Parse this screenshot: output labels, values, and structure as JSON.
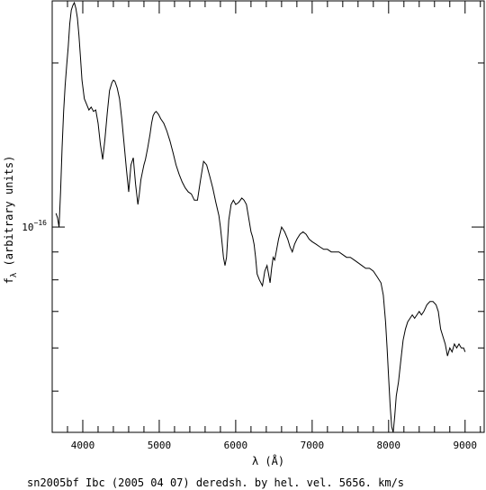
{
  "caption": "sn2005bf Ibc (2005 04 07) deredsh. by hel. vel.  5656. km/s",
  "chart_data": {
    "type": "line",
    "xlabel": "λ (Å)",
    "ylabel": "f_λ (arbitrary units)",
    "ylabel_main": "f",
    "ylabel_sub": "λ",
    "ylabel_rest": " (arbitrary units)",
    "xlim": [
      3600,
      9250
    ],
    "ylim": [
      4.2e-17,
      2.6e-16
    ],
    "yscale": "log",
    "x_ticks": [
      {
        "value": 4000,
        "label": "4000"
      },
      {
        "value": 5000,
        "label": "5000"
      },
      {
        "value": 6000,
        "label": "6000"
      },
      {
        "value": 7000,
        "label": "7000"
      },
      {
        "value": 8000,
        "label": "8000"
      },
      {
        "value": 9000,
        "label": "9000"
      }
    ],
    "y_major_tick": {
      "value": 1e-16,
      "mantissa": "10",
      "exponent": "−16"
    },
    "grid": false,
    "series": [
      {
        "x": [
          3650,
          3670,
          3690,
          3710,
          3730,
          3750,
          3770,
          3790,
          3810,
          3830,
          3850,
          3870,
          3890,
          3910,
          3930,
          3950,
          3970,
          3990,
          4020,
          4050,
          4080,
          4110,
          4140,
          4170,
          4200,
          4230,
          4260,
          4290,
          4320,
          4350,
          4380,
          4400,
          4420,
          4450,
          4480,
          4510,
          4540,
          4570,
          4600,
          4630,
          4660,
          4690,
          4720,
          4740,
          4760,
          4780,
          4800,
          4820,
          4850,
          4880,
          4900,
          4920,
          4940,
          4960,
          4990,
          5020,
          5060,
          5100,
          5140,
          5180,
          5220,
          5260,
          5300,
          5340,
          5380,
          5420,
          5460,
          5500,
          5540,
          5580,
          5620,
          5660,
          5700,
          5740,
          5780,
          5800,
          5820,
          5840,
          5860,
          5880,
          5910,
          5940,
          5970,
          6000,
          6040,
          6080,
          6110,
          6140,
          6170,
          6200,
          6220,
          6240,
          6260,
          6280,
          6310,
          6350,
          6380,
          6410,
          6430,
          6450,
          6470,
          6490,
          6510,
          6530,
          6560,
          6600,
          6640,
          6680,
          6710,
          6740,
          6770,
          6800,
          6840,
          6880,
          6920,
          6960,
          7000,
          7050,
          7100,
          7150,
          7200,
          7250,
          7300,
          7350,
          7400,
          7450,
          7500,
          7550,
          7600,
          7650,
          7700,
          7750,
          7800,
          7850,
          7900,
          7930,
          7960,
          7980,
          8000,
          8020,
          8040,
          8060,
          8080,
          8100,
          8130,
          8160,
          8190,
          8220,
          8250,
          8280,
          8310,
          8340,
          8370,
          8400,
          8430,
          8460,
          8500,
          8540,
          8580,
          8620,
          8650,
          8680,
          8710,
          8740,
          8770,
          8800,
          8830,
          8860,
          8890,
          8920,
          8950,
          8980,
          9000
        ],
        "y": [
          1.06e-16,
          1.04e-16,
          1e-16,
          1.16e-16,
          1.4e-16,
          1.63e-16,
          1.82e-16,
          1.98e-16,
          2.14e-16,
          2.36e-16,
          2.5e-16,
          2.55e-16,
          2.58e-16,
          2.52e-16,
          2.42e-16,
          2.25e-16,
          2.05e-16,
          1.86e-16,
          1.72e-16,
          1.68e-16,
          1.64e-16,
          1.66e-16,
          1.63e-16,
          1.64e-16,
          1.55e-16,
          1.42e-16,
          1.33e-16,
          1.45e-16,
          1.62e-16,
          1.78e-16,
          1.84e-16,
          1.86e-16,
          1.85e-16,
          1.8e-16,
          1.72e-16,
          1.58e-16,
          1.42e-16,
          1.28e-16,
          1.16e-16,
          1.3e-16,
          1.34e-16,
          1.2e-16,
          1.1e-16,
          1.15e-16,
          1.22e-16,
          1.26e-16,
          1.3e-16,
          1.33e-16,
          1.4e-16,
          1.48e-16,
          1.55e-16,
          1.6e-16,
          1.62e-16,
          1.63e-16,
          1.61e-16,
          1.58e-16,
          1.55e-16,
          1.5e-16,
          1.44e-16,
          1.37e-16,
          1.3e-16,
          1.25e-16,
          1.21e-16,
          1.18e-16,
          1.16e-16,
          1.15e-16,
          1.12e-16,
          1.12e-16,
          1.22e-16,
          1.32e-16,
          1.3e-16,
          1.24e-16,
          1.18e-16,
          1.11e-16,
          1.05e-16,
          1e-16,
          9.4e-17,
          8.8e-17,
          8.5e-17,
          8.8e-17,
          1.03e-16,
          1.1e-16,
          1.12e-16,
          1.1e-16,
          1.11e-16,
          1.13e-16,
          1.12e-16,
          1.1e-16,
          1.04e-16,
          9.8e-17,
          9.6e-17,
          9.3e-17,
          8.8e-17,
          8.2e-17,
          8e-17,
          7.8e-17,
          8.3e-17,
          8.5e-17,
          8.2e-17,
          7.9e-17,
          8.4e-17,
          8.8e-17,
          8.7e-17,
          9e-17,
          9.5e-17,
          1e-16,
          9.8e-17,
          9.5e-17,
          9.2e-17,
          9e-17,
          9.3e-17,
          9.5e-17,
          9.7e-17,
          9.8e-17,
          9.7e-17,
          9.5e-17,
          9.4e-17,
          9.3e-17,
          9.2e-17,
          9.1e-17,
          9.1e-17,
          9e-17,
          9e-17,
          9e-17,
          8.9e-17,
          8.8e-17,
          8.8e-17,
          8.7e-17,
          8.6e-17,
          8.5e-17,
          8.4e-17,
          8.4e-17,
          8.3e-17,
          8.1e-17,
          7.9e-17,
          7.5e-17,
          6.7e-17,
          6e-17,
          5.3e-17,
          4.7e-17,
          4.3e-17,
          4.2e-17,
          4.5e-17,
          4.9e-17,
          5.2e-17,
          5.7e-17,
          6.2e-17,
          6.5e-17,
          6.7e-17,
          6.8e-17,
          6.9e-17,
          6.8e-17,
          6.9e-17,
          7e-17,
          6.9e-17,
          7e-17,
          7.2e-17,
          7.3e-17,
          7.3e-17,
          7.2e-17,
          7e-17,
          6.5e-17,
          6.3e-17,
          6.1e-17,
          5.8e-17,
          6e-17,
          5.9e-17,
          6.1e-17,
          6e-17,
          6.1e-17,
          6e-17,
          6e-17,
          5.9e-17
        ]
      }
    ]
  }
}
